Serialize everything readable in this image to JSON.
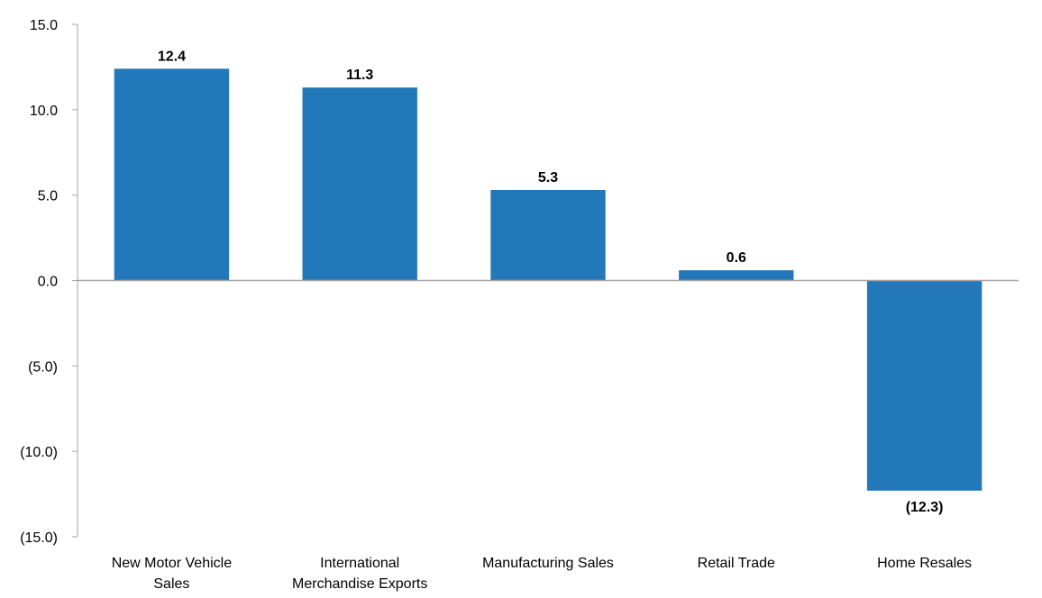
{
  "chart_data": {
    "type": "bar",
    "title": "",
    "xlabel": "",
    "ylabel": "",
    "categories": [
      [
        "New Motor Vehicle",
        "Sales"
      ],
      [
        "International",
        "Merchandise Exports"
      ],
      [
        "Manufacturing Sales"
      ],
      [
        "Retail Trade"
      ],
      [
        "Home Resales"
      ]
    ],
    "values": [
      12.4,
      11.3,
      5.3,
      0.6,
      -12.3
    ],
    "value_labels": [
      "12.4",
      "11.3",
      "5.3",
      "0.6",
      "(12.3)"
    ],
    "ylim": [
      -15,
      15
    ],
    "yticks": [
      15,
      10,
      5,
      0,
      -5,
      -10,
      -15
    ],
    "ytick_labels": [
      "15.0",
      "10.0",
      "5.0",
      "0.0",
      "(5.0)",
      "(10.0)",
      "(15.0)"
    ],
    "grid": false,
    "legend": "none",
    "bar_color": "#2278B8",
    "axis_color": "#A6A6A6"
  }
}
